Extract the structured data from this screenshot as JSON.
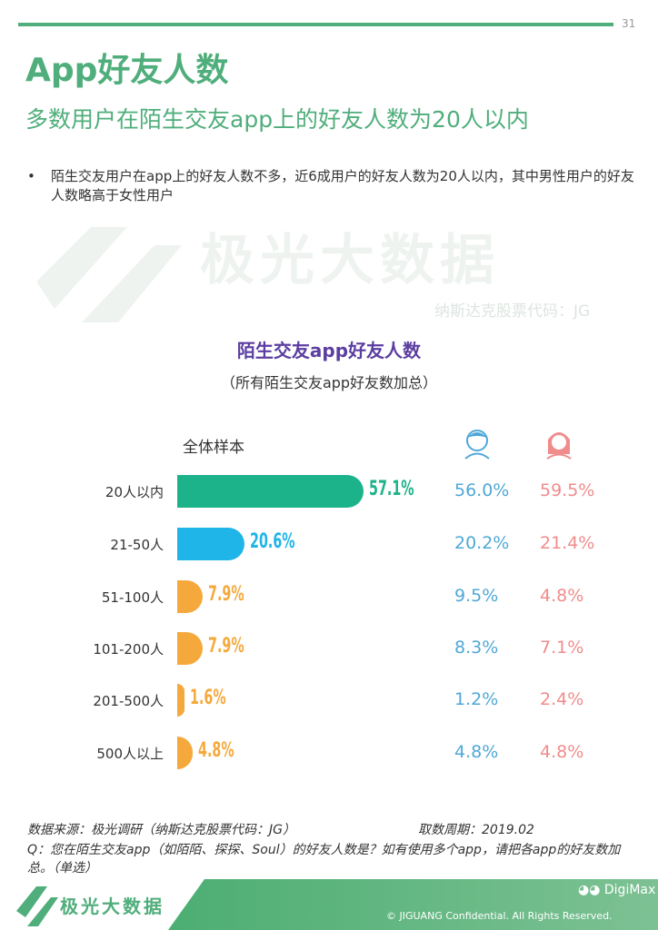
{
  "header": {
    "page_number": "31",
    "title": "App好友人数",
    "subtitle": "多数用户在陌生交友app上的好友人数为20人以内"
  },
  "bullet": {
    "symbol": "•",
    "text": "陌生交友用户在app上的好友人数不多，近6成用户的好友人数为20人以内，其中男性用户的好友人数略高于女性用户"
  },
  "watermark": {
    "brand": "极光大数据",
    "code": "纳斯达克股票代码：JG"
  },
  "chart_data": {
    "type": "bar",
    "orientation": "horizontal",
    "title": "陌生交友app好友人数",
    "subtitle": "（所有陌生交友app好友数加总）",
    "series_label": "全体样本",
    "categories": [
      "20人以内",
      "21-50人",
      "51-100人",
      "101-200人",
      "201-500人",
      "500人以上"
    ],
    "values": [
      57.1,
      20.6,
      7.9,
      7.9,
      1.6,
      4.8
    ],
    "value_labels": [
      "57.1%",
      "20.6%",
      "7.9%",
      "7.9%",
      "1.6%",
      "4.8%"
    ],
    "bar_colors": [
      "#1db38a",
      "#1fb5e8",
      "#f5a93c",
      "#f5a93c",
      "#f5a93c",
      "#f5a93c"
    ],
    "male_icon": "boy-icon",
    "female_icon": "girl-icon",
    "male": [
      "56.0%",
      "20.2%",
      "9.5%",
      "8.3%",
      "1.2%",
      "4.8%"
    ],
    "female": [
      "59.5%",
      "21.4%",
      "4.8%",
      "7.1%",
      "2.4%",
      "4.8%"
    ],
    "male_color": "#4fa8d8",
    "female_color": "#f08c8c"
  },
  "footer": {
    "source": "数据来源：极光调研（纳斯达克股票代码：JG）",
    "period": "取数周期：2019.02",
    "question": "Q：您在陌生交友app（如陌陌、探探、Soul）的好友人数是？如有使用多个app，请把各app的好友数加总。（单选）",
    "brand": "极光大数据",
    "copyright": "© JIGUANG Confidential. All Rights Reserved.",
    "wechat": "DigiMax"
  }
}
